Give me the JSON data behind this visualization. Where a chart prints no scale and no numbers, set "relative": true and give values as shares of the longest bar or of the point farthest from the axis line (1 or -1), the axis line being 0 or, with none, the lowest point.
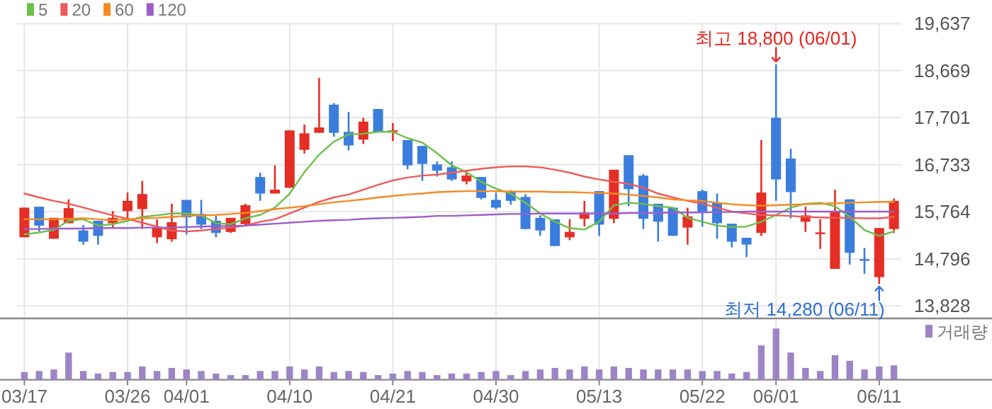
{
  "chart_data": [
    {
      "type": "candlestick",
      "categories": [
        "03/17",
        null,
        null,
        null,
        null,
        null,
        null,
        "03/26",
        null,
        null,
        null,
        "04/01",
        null,
        null,
        null,
        null,
        null,
        null,
        "04/10",
        null,
        null,
        null,
        null,
        null,
        null,
        "04/21",
        null,
        null,
        null,
        null,
        null,
        null,
        "04/30",
        null,
        null,
        null,
        null,
        null,
        null,
        "05/13",
        null,
        null,
        null,
        null,
        null,
        null,
        "05/22",
        null,
        null,
        null,
        null,
        "06/01",
        null,
        null,
        null,
        null,
        null,
        null,
        "06/11",
        null
      ],
      "ohlc": [
        [
          15240,
          15850,
          15240,
          15850
        ],
        [
          15870,
          15870,
          15360,
          15480
        ],
        [
          15210,
          15640,
          15210,
          15640
        ],
        [
          15530,
          16020,
          15530,
          15840
        ],
        [
          15380,
          15490,
          15090,
          15150
        ],
        [
          15580,
          15580,
          15090,
          15270
        ],
        [
          15530,
          15780,
          15440,
          15640
        ],
        [
          15780,
          16160,
          15560,
          15990
        ],
        [
          15820,
          16400,
          15410,
          16130
        ],
        [
          15240,
          15610,
          15120,
          15430
        ],
        [
          15200,
          15930,
          15150,
          15550
        ],
        [
          16010,
          16010,
          15300,
          15650
        ],
        [
          15720,
          16010,
          15410,
          15500
        ],
        [
          15580,
          15680,
          15240,
          15330
        ],
        [
          15350,
          15640,
          15330,
          15640
        ],
        [
          15510,
          15930,
          15480,
          15900
        ],
        [
          16480,
          16570,
          15990,
          16140
        ],
        [
          16140,
          16720,
          16140,
          16220
        ],
        [
          16260,
          17440,
          16260,
          17440
        ],
        [
          17040,
          17560,
          16960,
          17380
        ],
        [
          17390,
          18520,
          17390,
          17500
        ],
        [
          17970,
          18000,
          17310,
          17390
        ],
        [
          17410,
          17820,
          17030,
          17130
        ],
        [
          17250,
          17700,
          17160,
          17620
        ],
        [
          17880,
          17880,
          17410,
          17410
        ],
        [
          17420,
          17590,
          17220,
          17440
        ],
        [
          17240,
          17240,
          16640,
          16720
        ],
        [
          17120,
          17120,
          16400,
          16750
        ],
        [
          16740,
          16800,
          16490,
          16610
        ],
        [
          16680,
          16800,
          16400,
          16430
        ],
        [
          16390,
          16570,
          16330,
          16510
        ],
        [
          16480,
          16480,
          16020,
          16050
        ],
        [
          16010,
          16160,
          15820,
          15850
        ],
        [
          16190,
          16210,
          15910,
          15990
        ],
        [
          16070,
          16130,
          15410,
          15410
        ],
        [
          15640,
          15690,
          15270,
          15380
        ],
        [
          15610,
          15610,
          15060,
          15060
        ],
        [
          15240,
          15610,
          15180,
          15350
        ],
        [
          15620,
          15990,
          15460,
          15750
        ],
        [
          16190,
          16190,
          15270,
          15500
        ],
        [
          15620,
          16630,
          15530,
          16630
        ],
        [
          16930,
          16930,
          15880,
          16230
        ],
        [
          16510,
          16540,
          15410,
          15620
        ],
        [
          15930,
          15930,
          15150,
          15560
        ],
        [
          15850,
          15850,
          15270,
          15270
        ],
        [
          15440,
          15850,
          15090,
          15670
        ],
        [
          16190,
          16220,
          15460,
          15750
        ],
        [
          15950,
          16140,
          15210,
          15530
        ],
        [
          15520,
          15520,
          15030,
          15150
        ],
        [
          15230,
          15230,
          14830,
          15090
        ],
        [
          15330,
          17240,
          15270,
          16160
        ],
        [
          17700,
          18800,
          15990,
          16430
        ],
        [
          16860,
          17060,
          15630,
          16170
        ],
        [
          15560,
          15870,
          15350,
          15690
        ],
        [
          15320,
          15610,
          15000,
          15340
        ],
        [
          14590,
          16220,
          14590,
          15760
        ],
        [
          16020,
          16020,
          14680,
          14920
        ],
        [
          14790,
          15020,
          14490,
          14760
        ],
        [
          14420,
          15430,
          14280,
          15430
        ],
        [
          15410,
          16040,
          15330,
          15990
        ]
      ],
      "colors": [
        "#e52e25",
        "#3b7ddd",
        "#e52e25",
        "#e52e25",
        "#3b7ddd",
        "#3b7ddd",
        "#e52e25",
        "#e52e25",
        "#e52e25",
        "#e52e25",
        "#e52e25",
        "#3b7ddd",
        "#3b7ddd",
        "#3b7ddd",
        "#e52e25",
        "#e52e25",
        "#3b7ddd",
        "#e52e25",
        "#e52e25",
        "#e52e25",
        "#e52e25",
        "#3b7ddd",
        "#3b7ddd",
        "#e52e25",
        "#3b7ddd",
        "#e52e25",
        "#3b7ddd",
        "#3b7ddd",
        "#3b7ddd",
        "#3b7ddd",
        "#e52e25",
        "#3b7ddd",
        "#3b7ddd",
        "#3b7ddd",
        "#3b7ddd",
        "#3b7ddd",
        "#3b7ddd",
        "#e52e25",
        "#e52e25",
        "#3b7ddd",
        "#e52e25",
        "#3b7ddd",
        "#3b7ddd",
        "#3b7ddd",
        "#3b7ddd",
        "#e52e25",
        "#3b7ddd",
        "#3b7ddd",
        "#3b7ddd",
        "#3b7ddd",
        "#e52e25",
        "#3b7ddd",
        "#3b7ddd",
        "#e52e25",
        "#e52e25",
        "#e52e25",
        "#3b7ddd",
        "#3b7ddd",
        "#e52e25",
        "#e52e25"
      ],
      "series": [
        {
          "name": "5",
          "type": "line",
          "color": "#6cc04a",
          "values": [
            15300,
            15340,
            15390,
            15580,
            15610,
            15480,
            15510,
            15580,
            15660,
            15690,
            15730,
            15730,
            15690,
            15530,
            15510,
            15630,
            15700,
            15850,
            16140,
            16580,
            16940,
            17210,
            17360,
            17370,
            17410,
            17410,
            17280,
            17190,
            16970,
            16720,
            16580,
            16380,
            16240,
            16140,
            15950,
            15730,
            15560,
            15430,
            15400,
            15560,
            15900,
            15950,
            15930,
            15880,
            15850,
            15640,
            15560,
            15480,
            15450,
            15460,
            15560,
            15700,
            15850,
            15930,
            15950,
            15880,
            15660,
            15390,
            15270,
            15360
          ]
        },
        {
          "name": "20",
          "type": "line",
          "color": "#ee5a5a",
          "values": [
            16140,
            16060,
            15990,
            15930,
            15850,
            15770,
            15690,
            15620,
            15540,
            15460,
            15380,
            15360,
            15380,
            15410,
            15440,
            15480,
            15560,
            15610,
            15730,
            15850,
            15970,
            16060,
            16120,
            16220,
            16320,
            16410,
            16470,
            16510,
            16530,
            16570,
            16610,
            16650,
            16680,
            16700,
            16700,
            16680,
            16630,
            16570,
            16490,
            16430,
            16380,
            16340,
            16260,
            16140,
            16060,
            15990,
            15930,
            15850,
            15770,
            15730,
            15700,
            15690,
            15680,
            15660,
            15650,
            15640,
            15640,
            15630,
            15630,
            15660
          ]
        },
        {
          "name": "60",
          "type": "line",
          "color": "#f58a23",
          "values": [
            15610,
            15610,
            15610,
            15620,
            15630,
            15610,
            15590,
            15610,
            15630,
            15640,
            15660,
            15680,
            15690,
            15700,
            15720,
            15740,
            15780,
            15820,
            15850,
            15880,
            15920,
            15960,
            15990,
            16020,
            16060,
            16090,
            16120,
            16140,
            16170,
            16180,
            16190,
            16190,
            16190,
            16180,
            16180,
            16180,
            16170,
            16170,
            16160,
            16150,
            16140,
            16120,
            16090,
            16060,
            16020,
            16000,
            15990,
            15950,
            15920,
            15900,
            15890,
            15900,
            15910,
            15920,
            15930,
            15940,
            15950,
            15960,
            15970,
            15970
          ]
        },
        {
          "name": "120",
          "type": "line",
          "color": "#9b5fca",
          "values": [
            15410,
            15410,
            15420,
            15420,
            15420,
            15430,
            15430,
            15430,
            15440,
            15440,
            15440,
            15450,
            15460,
            15470,
            15470,
            15480,
            15500,
            15520,
            15540,
            15560,
            15580,
            15590,
            15600,
            15620,
            15630,
            15640,
            15650,
            15660,
            15680,
            15680,
            15690,
            15700,
            15710,
            15720,
            15720,
            15730,
            15730,
            15730,
            15730,
            15730,
            15730,
            15740,
            15740,
            15740,
            15750,
            15750,
            15750,
            15760,
            15760,
            15770,
            15770,
            15770,
            15770,
            15770,
            15770,
            15770,
            15770,
            15770,
            15770,
            15770
          ]
        }
      ],
      "ylim": [
        13570,
        19637
      ],
      "yticks": [
        {
          "value": 13828,
          "label": "13,828"
        },
        {
          "value": 14796,
          "label": "14,796"
        },
        {
          "value": 15764,
          "label": "15,764"
        },
        {
          "value": 16733,
          "label": "16,733"
        },
        {
          "value": 17701,
          "label": "17,701"
        },
        {
          "value": 18669,
          "label": "18,669"
        },
        {
          "value": 19637,
          "label": "19,637"
        }
      ],
      "annotations": [
        {
          "text": "최고 18,800 (06/01)",
          "x": "06/01",
          "y": 18800
        },
        {
          "text": "최저 14,280 (06/11)",
          "x": "06/11",
          "y": 14280
        }
      ],
      "grid": true,
      "legend": "top left",
      "tick_labels": "y"
    },
    {
      "type": "bar",
      "categories": [
        "03/17",
        null,
        null,
        null,
        null,
        null,
        null,
        "03/26",
        null,
        null,
        null,
        "04/01",
        null,
        null,
        null,
        null,
        null,
        null,
        "04/10",
        null,
        null,
        null,
        null,
        null,
        null,
        "04/21",
        null,
        null,
        null,
        null,
        null,
        null,
        "04/30",
        null,
        null,
        null,
        null,
        null,
        null,
        "05/13",
        null,
        null,
        null,
        null,
        null,
        null,
        "05/22",
        null,
        null,
        null,
        null,
        "06/01",
        null,
        null,
        null,
        null,
        null,
        null,
        "06/11",
        null
      ],
      "series": [
        {
          "name": "거래량",
          "color": "#9d84c6",
          "values": [
            0.15,
            0.17,
            0.2,
            0.53,
            0.17,
            0.12,
            0.15,
            0.15,
            0.26,
            0.17,
            0.23,
            0.2,
            0.17,
            0.12,
            0.09,
            0.09,
            0.17,
            0.17,
            0.26,
            0.2,
            0.26,
            0.15,
            0.17,
            0.15,
            0.09,
            0.12,
            0.17,
            0.15,
            0.09,
            0.12,
            0.12,
            0.15,
            0.17,
            0.09,
            0.17,
            0.2,
            0.23,
            0.2,
            0.26,
            0.2,
            0.26,
            0.23,
            0.2,
            0.2,
            0.2,
            0.2,
            0.17,
            0.17,
            0.12,
            0.15,
            0.67,
            1,
            0.53,
            0.23,
            0.17,
            0.48,
            0.37,
            0.2,
            0.26,
            0.28
          ]
        }
      ],
      "relative": true,
      "grid": "x",
      "legend": "top right",
      "tick_labels": "x"
    }
  ]
}
